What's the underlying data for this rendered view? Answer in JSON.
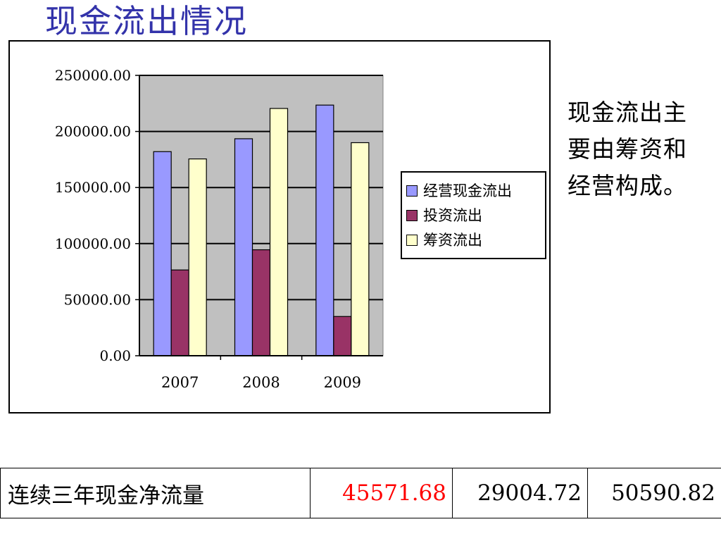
{
  "slide": {
    "title": "现金流出情况",
    "side_note": "现金流出主要由筹资和经营构成。",
    "title_color": "#3333aa"
  },
  "chart_data": {
    "type": "bar",
    "categories": [
      "2007",
      "2008",
      "2009"
    ],
    "series": [
      {
        "name": "经营现金流出",
        "color": "#9999ff",
        "values": [
          182000,
          193500,
          223500
        ]
      },
      {
        "name": "投资流出",
        "color": "#993366",
        "values": [
          76500,
          94500,
          35000
        ]
      },
      {
        "name": "筹资流出",
        "color": "#ffffcc",
        "values": [
          175500,
          220500,
          190000
        ]
      }
    ],
    "ylim": [
      0,
      250000
    ],
    "y_ticks": [
      "0.00",
      "50000.00",
      "100000.00",
      "150000.00",
      "200000.00",
      "250000.00"
    ],
    "y_tick_values": [
      0,
      50000,
      100000,
      150000,
      200000,
      250000
    ],
    "plot_background": "#c0c0c0",
    "grid": true,
    "legend_position": "right"
  },
  "table": {
    "row_label": "连续三年现金净流量",
    "values": [
      {
        "text": "45571.68",
        "color": "#ff0000"
      },
      {
        "text": "29004.72",
        "color": "#000000"
      },
      {
        "text": "50590.82",
        "color": "#000000"
      }
    ]
  }
}
